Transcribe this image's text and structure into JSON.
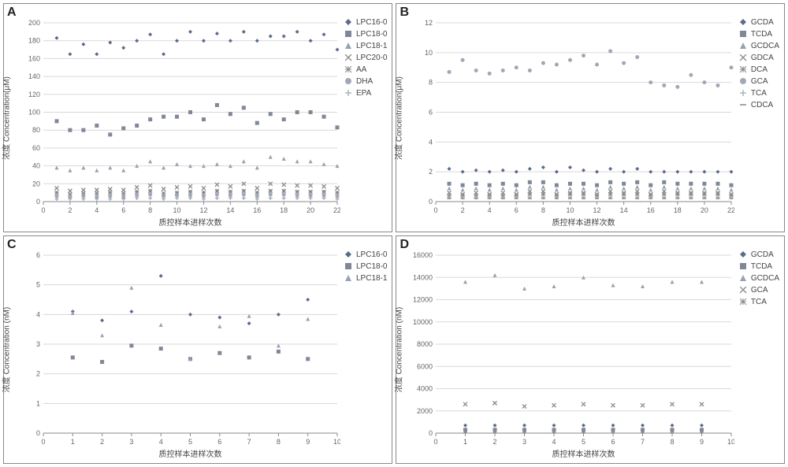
{
  "panels": {
    "A": {
      "label": "A",
      "xlabel": "质控样本进样次数",
      "ylabel": "浓度 Concentration(μM)",
      "xlim": [
        0,
        22
      ],
      "ylim": [
        0,
        200
      ],
      "xtick_step": 2,
      "ytick_step": 20,
      "grid_color": "#d9d9d9",
      "axis_color": "#888888",
      "label_fontsize": 10,
      "tick_fontsize": 9,
      "x_values": [
        1,
        2,
        3,
        4,
        5,
        6,
        7,
        8,
        9,
        10,
        11,
        12,
        13,
        14,
        15,
        16,
        17,
        18,
        19,
        20,
        21,
        22
      ],
      "series": [
        {
          "name": "LPC16-0",
          "marker": "diamond",
          "color": "#5a6b8c",
          "values": [
            183,
            165,
            176,
            165,
            178,
            172,
            180,
            187,
            165,
            180,
            190,
            180,
            188,
            180,
            190,
            180,
            185,
            185,
            190,
            180,
            187,
            170
          ]
        },
        {
          "name": "LPC18-0",
          "marker": "square",
          "color": "#808898",
          "values": [
            90,
            80,
            80,
            85,
            75,
            82,
            85,
            92,
            95,
            95,
            100,
            92,
            108,
            98,
            105,
            88,
            98,
            92,
            100,
            100,
            95,
            83
          ]
        },
        {
          "name": "LPC18-1",
          "marker": "triangle",
          "color": "#98a2b0",
          "values": [
            38,
            35,
            38,
            35,
            38,
            35,
            40,
            45,
            38,
            42,
            40,
            40,
            42,
            40,
            45,
            38,
            50,
            48,
            45,
            45,
            42,
            40
          ]
        },
        {
          "name": "LPC20-0",
          "marker": "x",
          "color": "#888888",
          "values": [
            15,
            12,
            13,
            13,
            14,
            13,
            16,
            18,
            14,
            16,
            17,
            15,
            19,
            17,
            20,
            15,
            20,
            19,
            18,
            18,
            17,
            15
          ]
        },
        {
          "name": "AA",
          "marker": "asterisk",
          "color": "#888888",
          "values": [
            10,
            8,
            9,
            9,
            10,
            9,
            11,
            12,
            9,
            10,
            11,
            10,
            12,
            11,
            12,
            10,
            12,
            12,
            11,
            11,
            11,
            10
          ]
        },
        {
          "name": "DHA",
          "marker": "circle",
          "color": "#a0a8b8",
          "values": [
            6,
            5,
            6,
            5,
            6,
            5,
            7,
            8,
            6,
            7,
            7,
            6,
            8,
            7,
            8,
            6,
            8,
            8,
            7,
            7,
            7,
            6
          ]
        },
        {
          "name": "EPA",
          "marker": "plus",
          "color": "#a0a8b8",
          "values": [
            3,
            3,
            3,
            3,
            3,
            3,
            4,
            4,
            3,
            4,
            4,
            3,
            4,
            4,
            4,
            3,
            4,
            4,
            4,
            4,
            4,
            3
          ]
        }
      ]
    },
    "B": {
      "label": "B",
      "xlabel": "质控样本进样次数",
      "ylabel": "浓度 Concentration(μM)",
      "xlim": [
        0,
        22
      ],
      "ylim": [
        0,
        12
      ],
      "xtick_step": 2,
      "ytick_step": 2,
      "grid_color": "#d9d9d9",
      "axis_color": "#888888",
      "label_fontsize": 10,
      "tick_fontsize": 9,
      "x_values": [
        1,
        2,
        3,
        4,
        5,
        6,
        7,
        8,
        9,
        10,
        11,
        12,
        13,
        14,
        15,
        16,
        17,
        18,
        19,
        20,
        21,
        22
      ],
      "series": [
        {
          "name": "GCDA",
          "marker": "diamond",
          "color": "#5a6b8c",
          "values": [
            2.2,
            2.0,
            2.1,
            2.0,
            2.1,
            2.0,
            2.2,
            2.3,
            2.0,
            2.3,
            2.1,
            2.0,
            2.2,
            2.0,
            2.2,
            2.0,
            2.0,
            2.0,
            2.0,
            2.0,
            2.0,
            2.0
          ]
        },
        {
          "name": "TCDA",
          "marker": "square",
          "color": "#808898",
          "values": [
            1.2,
            1.1,
            1.2,
            1.1,
            1.2,
            1.1,
            1.3,
            1.3,
            1.1,
            1.2,
            1.2,
            1.1,
            1.3,
            1.2,
            1.3,
            1.1,
            1.3,
            1.2,
            1.2,
            1.2,
            1.2,
            1.1
          ]
        },
        {
          "name": "GCDCA",
          "marker": "triangle",
          "color": "#98a2b0",
          "values": [
            0.9,
            0.8,
            0.9,
            0.8,
            0.9,
            0.8,
            1.0,
            1.0,
            0.8,
            0.9,
            0.9,
            0.8,
            1.0,
            0.9,
            1.0,
            0.8,
            1.0,
            0.9,
            0.9,
            0.9,
            0.9,
            0.8
          ]
        },
        {
          "name": "GDCA",
          "marker": "x",
          "color": "#888888",
          "values": [
            0.6,
            0.5,
            0.6,
            0.5,
            0.6,
            0.5,
            0.7,
            0.7,
            0.5,
            0.6,
            0.6,
            0.5,
            0.7,
            0.6,
            0.7,
            0.5,
            0.7,
            0.6,
            0.6,
            0.6,
            0.6,
            0.5
          ]
        },
        {
          "name": "DCA",
          "marker": "asterisk",
          "color": "#888888",
          "values": [
            0.4,
            0.4,
            0.4,
            0.4,
            0.4,
            0.4,
            0.5,
            0.5,
            0.4,
            0.5,
            0.5,
            0.4,
            0.5,
            0.5,
            0.5,
            0.4,
            0.5,
            0.5,
            0.5,
            0.5,
            0.5,
            0.4
          ]
        },
        {
          "name": "GCA",
          "marker": "circle",
          "color": "#a0a8b8",
          "values": [
            8.7,
            9.5,
            8.8,
            8.6,
            8.8,
            9.0,
            8.8,
            9.3,
            9.2,
            9.5,
            9.8,
            9.2,
            10.1,
            9.3,
            9.7,
            8.0,
            7.8,
            7.7,
            8.5,
            8.0,
            7.8,
            9.0
          ]
        },
        {
          "name": "TCA",
          "marker": "plus",
          "color": "#a0a8b8",
          "values": [
            0.3,
            0.3,
            0.3,
            0.3,
            0.3,
            0.3,
            0.3,
            0.3,
            0.3,
            0.3,
            0.3,
            0.3,
            0.3,
            0.3,
            0.3,
            0.3,
            0.3,
            0.3,
            0.3,
            0.3,
            0.3,
            0.3
          ]
        },
        {
          "name": "CDCA",
          "marker": "dash",
          "color": "#888888",
          "values": [
            0.2,
            0.2,
            0.2,
            0.2,
            0.2,
            0.2,
            0.2,
            0.2,
            0.2,
            0.2,
            0.2,
            0.2,
            0.2,
            0.2,
            0.2,
            0.2,
            0.2,
            0.2,
            0.2,
            0.2,
            0.2,
            0.2
          ]
        }
      ]
    },
    "C": {
      "label": "C",
      "xlabel": "质控样本进样次数",
      "ylabel": "浓度 Concentration (nM)",
      "xlim": [
        0,
        10
      ],
      "ylim": [
        0,
        6
      ],
      "xtick_step": 1,
      "ytick_step": 1,
      "grid_color": "#d9d9d9",
      "axis_color": "#888888",
      "label_fontsize": 10,
      "tick_fontsize": 9,
      "x_values": [
        1,
        2,
        3,
        4,
        5,
        6,
        7,
        8,
        9
      ],
      "series": [
        {
          "name": "LPC16-0",
          "marker": "diamond",
          "color": "#5a6b8c",
          "values": [
            4.1,
            3.8,
            4.1,
            5.3,
            4.0,
            3.9,
            3.7,
            4.0,
            4.5
          ]
        },
        {
          "name": "LPC18-0",
          "marker": "square",
          "color": "#808898",
          "values": [
            2.55,
            2.4,
            2.95,
            2.85,
            2.5,
            2.7,
            2.55,
            2.75,
            2.5
          ]
        },
        {
          "name": "LPC18-1",
          "marker": "triangle",
          "color": "#98a2b0",
          "values": [
            4.05,
            3.3,
            4.9,
            3.65,
            2.5,
            3.6,
            3.95,
            2.95,
            3.85
          ]
        }
      ]
    },
    "D": {
      "label": "D",
      "xlabel": "质控样本进样次数",
      "ylabel": "浓度 Concentration (nM)",
      "xlim": [
        0,
        10
      ],
      "ylim": [
        0,
        16000
      ],
      "xtick_step": 1,
      "ytick_step": 2000,
      "grid_color": "#d9d9d9",
      "axis_color": "#888888",
      "label_fontsize": 10,
      "tick_fontsize": 9,
      "x_values": [
        1,
        2,
        3,
        4,
        5,
        6,
        7,
        8,
        9
      ],
      "series": [
        {
          "name": "GCDA",
          "marker": "diamond",
          "color": "#5a6b8c",
          "values": [
            700,
            700,
            700,
            700,
            700,
            700,
            700,
            700,
            700
          ]
        },
        {
          "name": "TCDA",
          "marker": "square",
          "color": "#808898",
          "values": [
            300,
            300,
            300,
            300,
            300,
            300,
            300,
            300,
            300
          ]
        },
        {
          "name": "GCDCA",
          "marker": "triangle",
          "color": "#98a2b0",
          "values": [
            13600,
            14200,
            13000,
            13200,
            14000,
            13300,
            13200,
            13600,
            13600
          ]
        },
        {
          "name": "GCA",
          "marker": "x",
          "color": "#888888",
          "values": [
            2600,
            2700,
            2400,
            2500,
            2600,
            2500,
            2500,
            2600,
            2600
          ]
        },
        {
          "name": "TCA",
          "marker": "asterisk",
          "color": "#888888",
          "values": [
            150,
            150,
            150,
            150,
            150,
            150,
            150,
            150,
            150
          ]
        }
      ]
    }
  },
  "marker_size": 5
}
